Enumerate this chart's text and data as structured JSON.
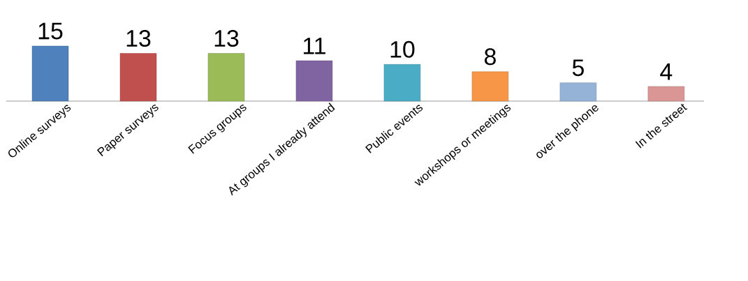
{
  "chart_data": {
    "type": "bar",
    "categories": [
      "Online surveys",
      "Paper surveys",
      "Focus groups",
      "At groups I already attend",
      "Public events",
      "workshops or meetings",
      "over the phone",
      "In the street"
    ],
    "values": [
      15,
      13,
      13,
      11,
      10,
      8,
      5,
      4
    ],
    "colors": [
      "#4f81bd",
      "#c0504d",
      "#9bbb59",
      "#8064a2",
      "#4bacc6",
      "#f79646",
      "#95b3d7",
      "#d99694"
    ],
    "data_labels": true,
    "grid": false
  }
}
